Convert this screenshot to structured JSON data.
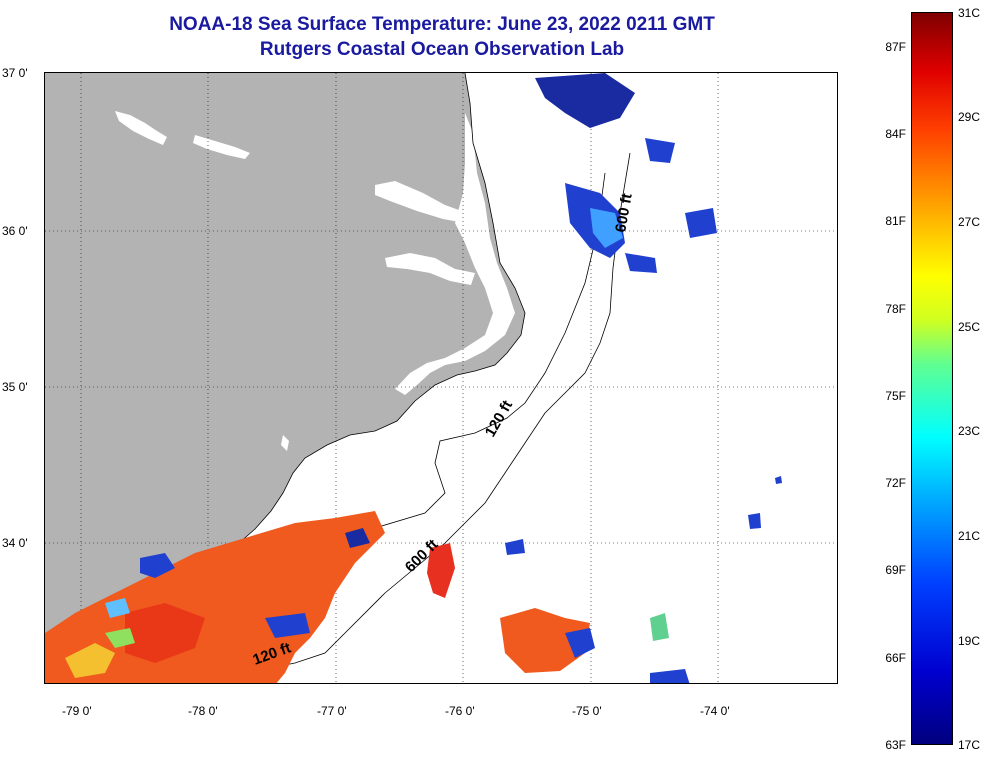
{
  "title": {
    "line1": "NOAA-18 Sea Surface Temperature:  June 23, 2022 0211 GMT",
    "line2": "Rutgers Coastal Ocean Observation Lab"
  },
  "axes": {
    "lat_labels": [
      "37 0'",
      "36 0'",
      "35 0'",
      "34 0'"
    ],
    "lon_labels": [
      "-79 0'",
      "-78 0'",
      "-77 0'",
      "-76 0'",
      "-75 0'",
      "-74 0'"
    ]
  },
  "contours": {
    "label_120": "120 ft",
    "label_600": "600 ft"
  },
  "colorbar": {
    "fahrenheit": [
      "87F",
      "84F",
      "81F",
      "78F",
      "75F",
      "72F",
      "69F",
      "66F",
      "63F"
    ],
    "celsius": [
      "31C",
      "29C",
      "27C",
      "25C",
      "23C",
      "21C",
      "19C",
      "17C"
    ]
  },
  "colors": {
    "land": "#b3b3b3",
    "ocean_nodata": "#ffffff",
    "title": "#1a1aa0",
    "warm": "#f05a1e",
    "cool": "#2040d0"
  }
}
